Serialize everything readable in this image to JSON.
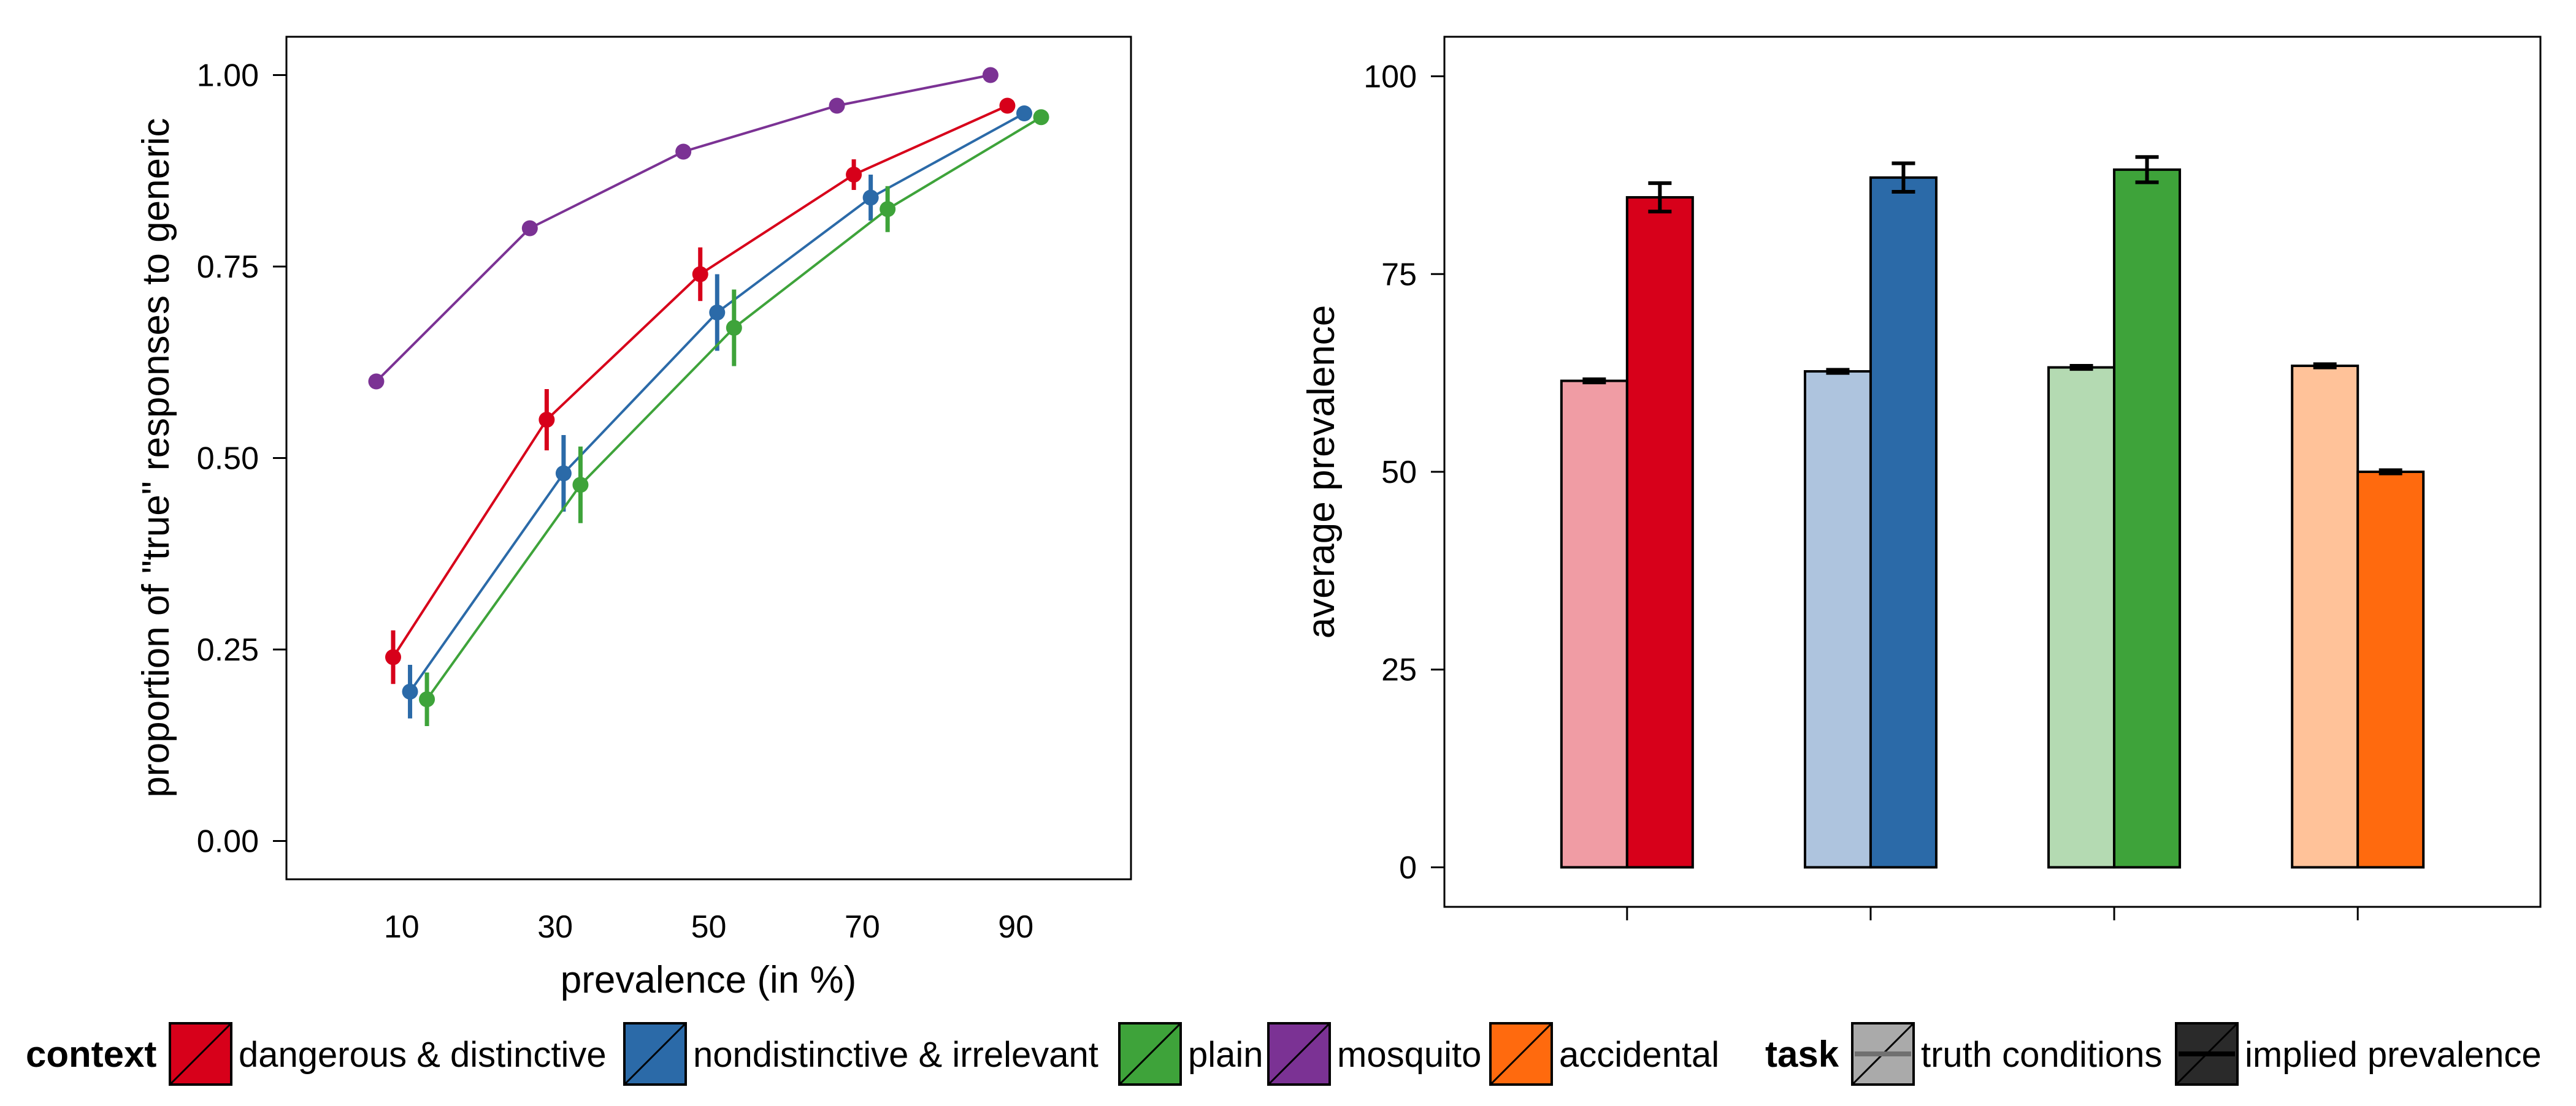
{
  "chart_data": [
    {
      "type": "line",
      "xlabel": "prevalence (in %)",
      "ylabel": "proportion of \"true\" responses to generic",
      "x": [
        10,
        30,
        50,
        70,
        90
      ],
      "x_tick_labels": [
        "10",
        "30",
        "50",
        "70",
        "90"
      ],
      "xlim": [
        -5,
        105
      ],
      "ylim": [
        -0.05,
        1.05
      ],
      "y_ticks": [
        0,
        0.25,
        0.5,
        0.75,
        1
      ],
      "y_tick_labels": [
        "0.00",
        "0.25",
        "0.50",
        "0.75",
        "1.00"
      ],
      "grid": false,
      "series": [
        {
          "name": "mosquito",
          "color": "#7B3294",
          "values": [
            0.6,
            0.8,
            0.9,
            0.96,
            1.0
          ],
          "err": [
            0,
            0,
            0,
            0,
            0
          ]
        },
        {
          "name": "dangerous & distinctive",
          "color": "#D7001A",
          "values": [
            0.24,
            0.55,
            0.74,
            0.87,
            0.96
          ],
          "err": [
            0.035,
            0.04,
            0.035,
            0.02,
            0.01
          ]
        },
        {
          "name": "nondistinctive & irrelevant",
          "color": "#2B6AA8",
          "values": [
            0.195,
            0.48,
            0.69,
            0.84,
            0.95
          ],
          "err": [
            0.035,
            0.05,
            0.05,
            0.03,
            0.01
          ]
        },
        {
          "name": "plain",
          "color": "#3EA33A",
          "values": [
            0.185,
            0.465,
            0.67,
            0.825,
            0.945
          ],
          "err": [
            0.035,
            0.05,
            0.05,
            0.03,
            0.01
          ]
        }
      ]
    },
    {
      "type": "bar",
      "ylabel": "average prevalence",
      "categories": [
        "dangerous & distinctive",
        "nondistinctive & irrelevant",
        "plain",
        "accidental"
      ],
      "ylim": [
        -5,
        105
      ],
      "y_ticks": [
        0,
        25,
        50,
        75,
        100
      ],
      "y_tick_labels": [
        "0",
        "25",
        "50",
        "75",
        "100"
      ],
      "grid": false,
      "series": [
        {
          "name": "truth conditions",
          "values": [
            61.5,
            62.7,
            63.2,
            63.4
          ],
          "err": [
            0.2,
            0.2,
            0.2,
            0.2
          ],
          "colors": [
            "#F09CA4",
            "#AEC4DE",
            "#B4DAB2",
            "#FFC299"
          ]
        },
        {
          "name": "implied prevalence",
          "values": [
            84.7,
            87.2,
            88.2,
            50.0
          ],
          "err": [
            1.8,
            1.8,
            1.6,
            0.2
          ],
          "colors": [
            "#D7001A",
            "#2B6AA8",
            "#3EA33A",
            "#FF6A0E"
          ]
        }
      ]
    }
  ],
  "legend": {
    "context_title": "context",
    "context_items": [
      {
        "label": "dangerous & distinctive",
        "color": "#D7001A"
      },
      {
        "label": "nondistinctive & irrelevant",
        "color": "#2B6AA8"
      },
      {
        "label": "plain",
        "color": "#3EA33A"
      },
      {
        "label": "mosquito",
        "color": "#7B3294"
      },
      {
        "label": "accidental",
        "color": "#FF6A0E"
      }
    ],
    "task_title": "task",
    "task_items": [
      {
        "label": "truth conditions",
        "color": "#AAAAAA",
        "line": "#707070"
      },
      {
        "label": "implied prevalence",
        "color": "#2A2A2A",
        "line": "#000000"
      }
    ]
  }
}
